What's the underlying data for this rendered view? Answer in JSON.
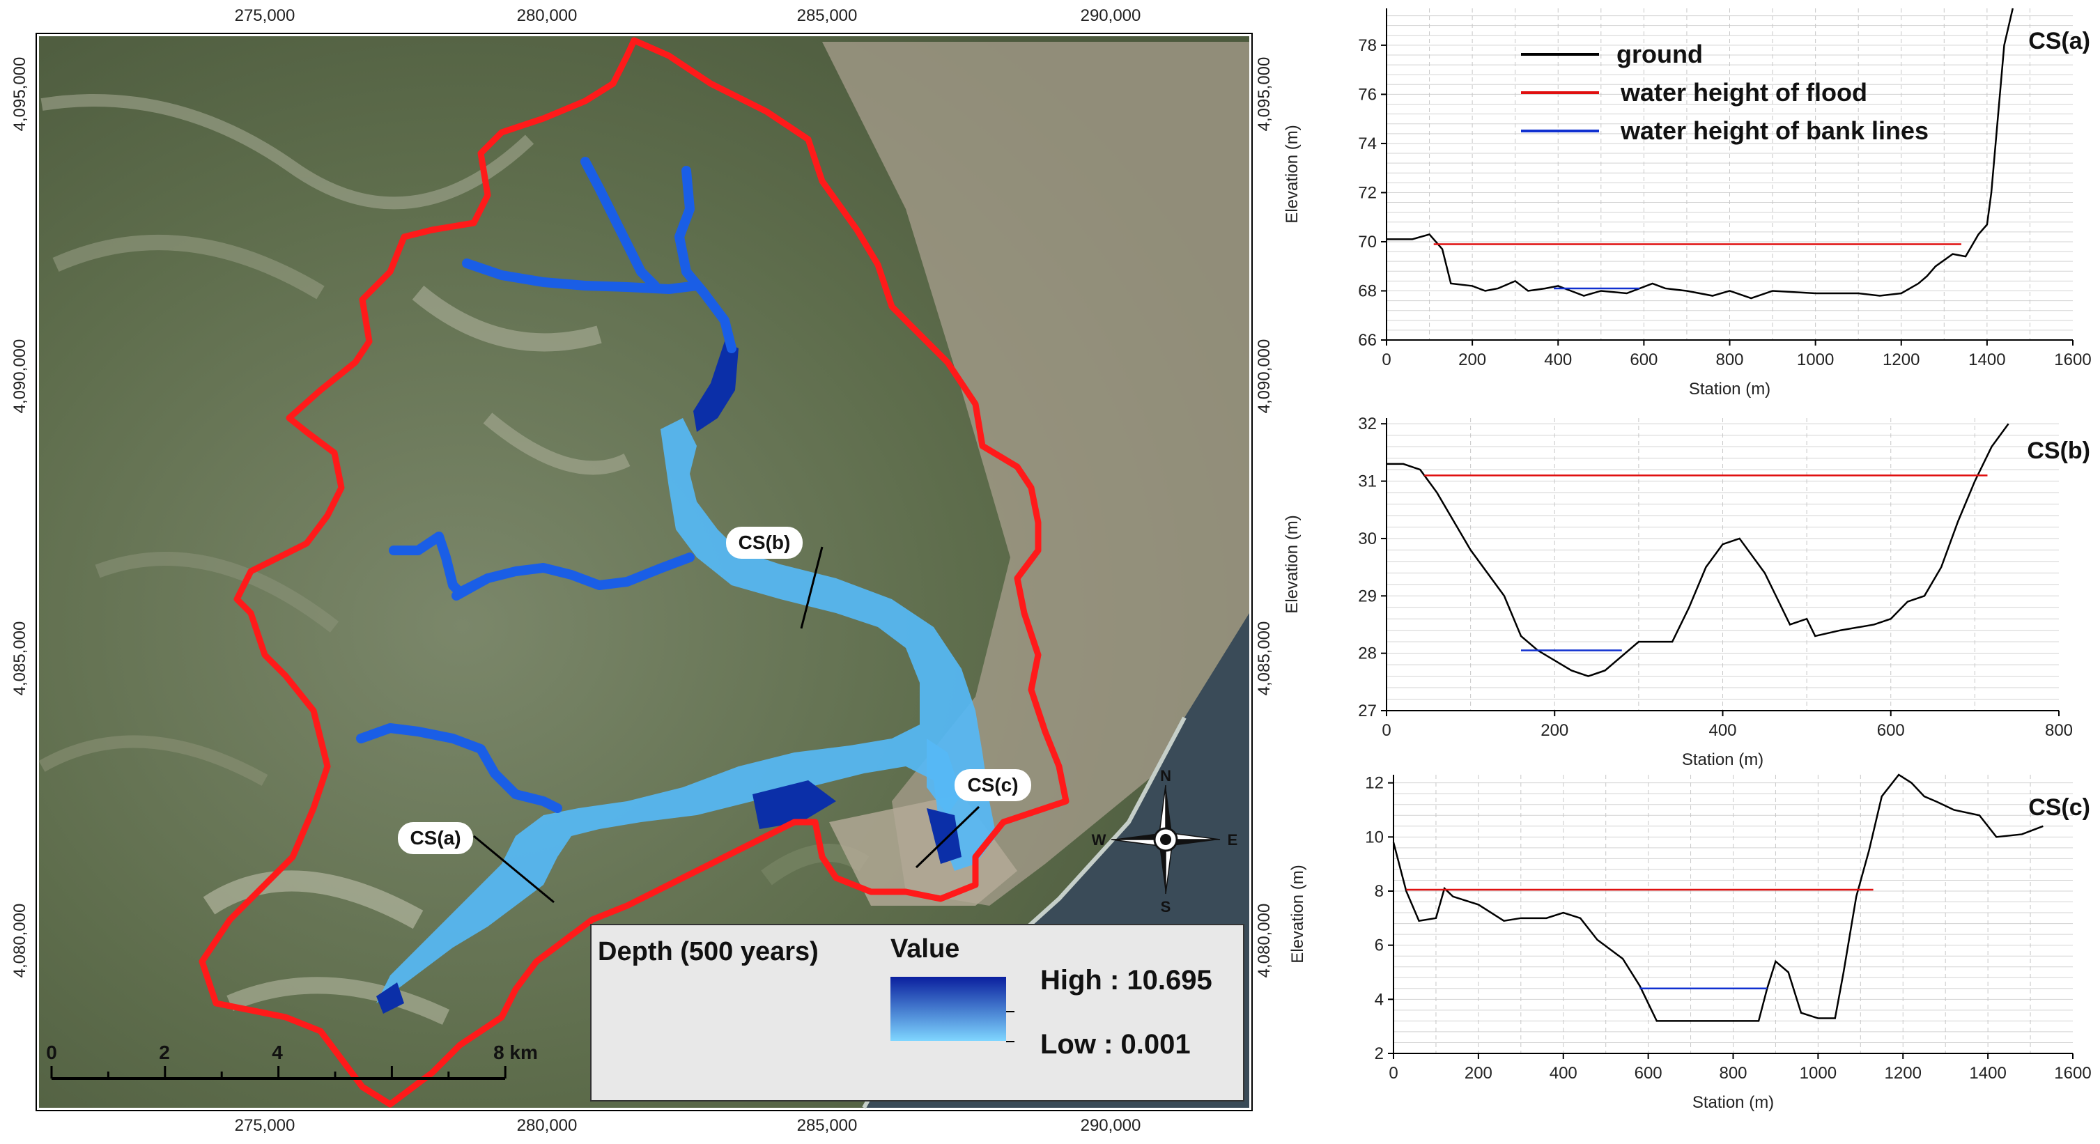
{
  "map": {
    "x_ticks": [
      "275,000",
      "280,000",
      "285,000",
      "290,000"
    ],
    "y_ticks": [
      "4,095,000",
      "4,090,000",
      "4,085,000",
      "4,080,000"
    ],
    "section_labels": [
      "CS(a)",
      "CS(b)",
      "CS(c)"
    ],
    "compass": {
      "n": "N",
      "s": "S",
      "e": "E",
      "w": "W"
    },
    "scalebar": {
      "labels": [
        "0",
        "2",
        "4",
        "8 km"
      ]
    },
    "legend": {
      "title": "Depth (500 years)",
      "value_label": "Value",
      "high": "High : 10.695",
      "low": "Low : 0.001",
      "color_high": "#0a1f9e",
      "color_low": "#7fd6ff"
    },
    "colors": {
      "watershed": "#ff1a1a",
      "river": "#1a5ee6",
      "flood_light": "#56b8f5",
      "flood_deep": "#0b2fa8"
    }
  },
  "chart_data": [
    {
      "type": "line",
      "title": "CS(a)",
      "xlabel": "Station (m)",
      "ylabel": "Elevation (m)",
      "xlim": [
        0,
        1600
      ],
      "ylim": [
        66,
        79.5
      ],
      "x_ticks": [
        0,
        200,
        400,
        600,
        800,
        1000,
        1200,
        1400,
        1600
      ],
      "y_ticks": [
        66,
        68,
        70,
        72,
        74,
        76,
        78
      ],
      "grid": true,
      "legend_position": "top-left",
      "series": [
        {
          "name": "ground",
          "color": "#000000",
          "x": [
            0,
            60,
            100,
            130,
            150,
            200,
            230,
            260,
            300,
            330,
            370,
            400,
            430,
            460,
            500,
            560,
            620,
            650,
            700,
            760,
            800,
            850,
            900,
            1000,
            1100,
            1150,
            1200,
            1240,
            1260,
            1280,
            1320,
            1350,
            1380,
            1400,
            1410,
            1430,
            1440,
            1460
          ],
          "y": [
            70.1,
            70.1,
            70.3,
            69.7,
            68.3,
            68.2,
            68.0,
            68.1,
            68.4,
            68.0,
            68.1,
            68.2,
            68.0,
            67.8,
            68.0,
            67.9,
            68.3,
            68.1,
            68.0,
            67.8,
            68.0,
            67.7,
            68.0,
            67.9,
            67.9,
            67.8,
            67.9,
            68.3,
            68.6,
            69.0,
            69.5,
            69.4,
            70.3,
            70.7,
            72.0,
            76.0,
            78.0,
            79.5
          ]
        },
        {
          "name": "water height of flood",
          "color": "#e01010",
          "x": [
            110,
            1340
          ],
          "y": [
            69.9,
            69.9
          ]
        },
        {
          "name": "water height of bank lines",
          "color": "#1030d0",
          "x": [
            390,
            590
          ],
          "y": [
            68.1,
            68.1
          ]
        }
      ]
    },
    {
      "type": "line",
      "title": "CS(b)",
      "xlabel": "Station (m)",
      "ylabel": "Elevation (m)",
      "xlim": [
        0,
        800
      ],
      "ylim": [
        27,
        32.1
      ],
      "x_ticks": [
        0,
        200,
        400,
        600,
        800
      ],
      "y_ticks": [
        27,
        28,
        29,
        30,
        31,
        32
      ],
      "grid": true,
      "series": [
        {
          "name": "ground",
          "color": "#000000",
          "x": [
            0,
            20,
            40,
            60,
            100,
            140,
            160,
            180,
            220,
            240,
            260,
            300,
            320,
            340,
            360,
            380,
            400,
            420,
            450,
            480,
            500,
            510,
            540,
            580,
            600,
            620,
            640,
            660,
            680,
            700,
            720,
            740
          ],
          "y": [
            31.3,
            31.3,
            31.2,
            30.8,
            29.8,
            29.0,
            28.3,
            28.05,
            27.7,
            27.6,
            27.7,
            28.2,
            28.2,
            28.2,
            28.8,
            29.5,
            29.9,
            30.0,
            29.4,
            28.5,
            28.6,
            28.3,
            28.4,
            28.5,
            28.6,
            28.9,
            29.0,
            29.5,
            30.3,
            31.0,
            31.6,
            32.0
          ]
        },
        {
          "name": "water height of flood",
          "color": "#e01010",
          "x": [
            45,
            715
          ],
          "y": [
            31.1,
            31.1
          ]
        },
        {
          "name": "water height of bank lines",
          "color": "#1030d0",
          "x": [
            160,
            280
          ],
          "y": [
            28.05,
            28.05
          ]
        }
      ]
    },
    {
      "type": "line",
      "title": "CS(c)",
      "xlabel": "Station (m)",
      "ylabel": "Elevation (m)",
      "xlim": [
        0,
        1600
      ],
      "ylim": [
        2,
        12.3
      ],
      "x_ticks": [
        0,
        200,
        400,
        600,
        800,
        1000,
        1200,
        1400,
        1600
      ],
      "y_ticks": [
        2,
        4,
        6,
        8,
        10,
        12
      ],
      "grid": true,
      "series": [
        {
          "name": "ground",
          "color": "#000000",
          "x": [
            0,
            30,
            60,
            100,
            120,
            140,
            200,
            260,
            300,
            360,
            400,
            440,
            480,
            540,
            580,
            620,
            650,
            700,
            800,
            860,
            880,
            900,
            930,
            960,
            1000,
            1040,
            1060,
            1090,
            1120,
            1150,
            1190,
            1220,
            1250,
            1280,
            1320,
            1380,
            1420,
            1480,
            1530
          ],
          "y": [
            9.8,
            8.0,
            6.9,
            7.0,
            8.1,
            7.8,
            7.5,
            6.9,
            7.0,
            7.0,
            7.2,
            7.0,
            6.2,
            5.5,
            4.5,
            3.2,
            3.2,
            3.2,
            3.2,
            3.2,
            4.4,
            5.4,
            5.0,
            3.5,
            3.3,
            3.3,
            5.0,
            7.8,
            9.5,
            11.5,
            12.3,
            12.0,
            11.5,
            11.3,
            11.0,
            10.8,
            10.0,
            10.1,
            10.4
          ]
        },
        {
          "name": "water height of flood",
          "color": "#e01010",
          "x": [
            30,
            1130
          ],
          "y": [
            8.05,
            8.05
          ]
        },
        {
          "name": "water height of bank lines",
          "color": "#1030d0",
          "x": [
            580,
            880
          ],
          "y": [
            4.4,
            4.4
          ]
        }
      ]
    }
  ]
}
